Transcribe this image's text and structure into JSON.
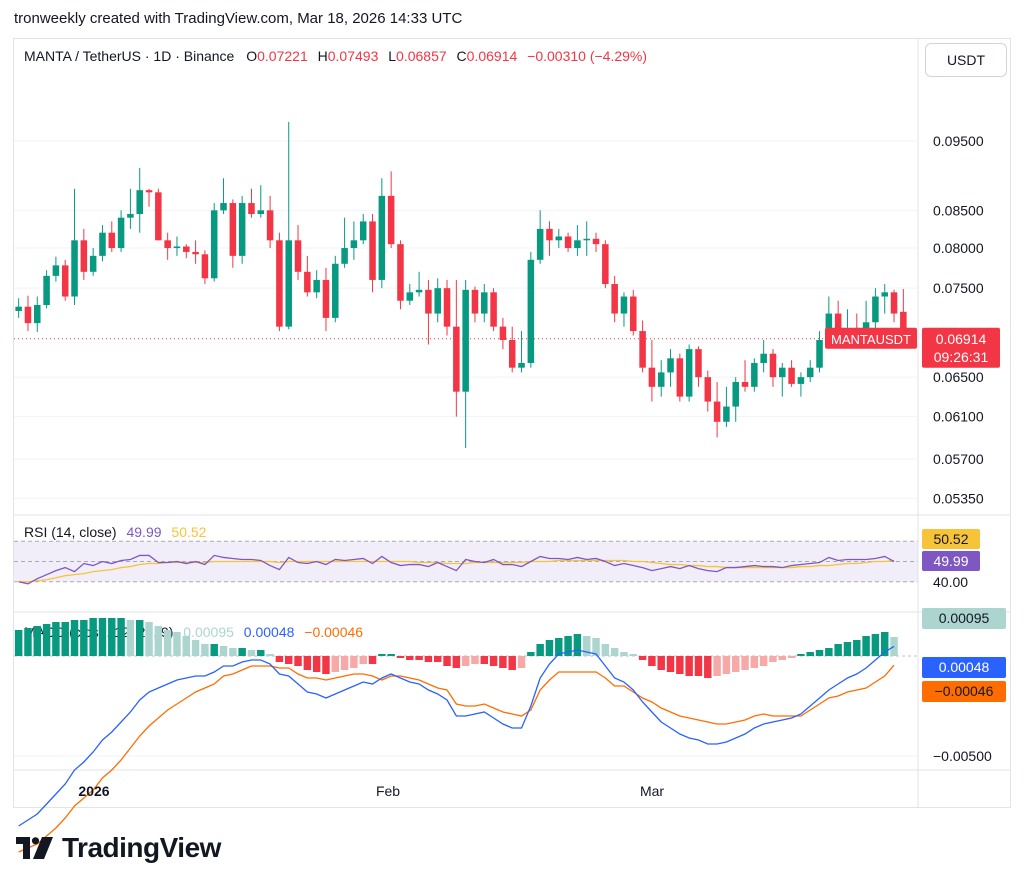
{
  "header": {
    "caption": "tronweekly created with TradingView.com, Mar 18, 2026 14:33 UTC"
  },
  "legend": {
    "symbol": "MANTA / TetherUS · 1D · Binance",
    "o_label": "O",
    "o_value": "0.07221",
    "h_label": "H",
    "h_value": "0.07493",
    "l_label": "L",
    "l_value": "0.06857",
    "c_label": "C",
    "c_value": "0.06914",
    "change": "−0.00310 (−4.29%)"
  },
  "unit_button": "USDT",
  "price_badge": {
    "symbol": "MANTAUSDT",
    "price": "0.06914",
    "countdown": "09:26:31"
  },
  "rsi_legend": {
    "label": "RSI (14, close)",
    "rsi": "49.99",
    "ma": "50.52"
  },
  "macd_legend": {
    "label": "MACD (close, 12, 26, 9)",
    "hist": "0.00095",
    "macd": "0.00048",
    "signal": "−0.00046"
  },
  "brand": "TradingView",
  "colors": {
    "up": "#089981",
    "down": "#f23645",
    "up_light": "#acd5cf",
    "down_light": "#f7a9a7",
    "rsi": "#7e57c2",
    "rsi_ma": "#f7c338",
    "macd": "#2962ff",
    "signal": "#ff6d00"
  },
  "chart_data": [
    {
      "type": "candlestick",
      "title": "MANTA / TetherUS · 1D · Binance",
      "y_ticks": [
        "0.09500",
        "0.08500",
        "0.08000",
        "0.07500",
        "0.06500",
        "0.06100",
        "0.05700",
        "0.05350"
      ],
      "x_ticks": [
        "2026",
        "Feb",
        "Mar"
      ],
      "scale": "log",
      "ylim": [
        0.0525,
        0.1015
      ],
      "last_price": 0.06914,
      "candles": [
        [
          0.0723,
          0.0738,
          0.0715,
          0.0728
        ],
        [
          0.0728,
          0.0741,
          0.07,
          0.0709
        ],
        [
          0.0709,
          0.074,
          0.0699,
          0.073
        ],
        [
          0.073,
          0.0772,
          0.0726,
          0.0765
        ],
        [
          0.0765,
          0.0789,
          0.0758,
          0.0778
        ],
        [
          0.0778,
          0.0785,
          0.0735,
          0.074
        ],
        [
          0.074,
          0.088,
          0.073,
          0.081
        ],
        [
          0.081,
          0.0825,
          0.076,
          0.077
        ],
        [
          0.077,
          0.08,
          0.0765,
          0.079
        ],
        [
          0.079,
          0.083,
          0.0783,
          0.082
        ],
        [
          0.082,
          0.0835,
          0.0795,
          0.08
        ],
        [
          0.08,
          0.085,
          0.0795,
          0.084
        ],
        [
          0.084,
          0.088,
          0.0825,
          0.0845
        ],
        [
          0.0845,
          0.091,
          0.082,
          0.0878
        ],
        [
          0.0878,
          0.088,
          0.0855,
          0.0875
        ],
        [
          0.0875,
          0.088,
          0.081,
          0.081
        ],
        [
          0.081,
          0.082,
          0.0785,
          0.08
        ],
        [
          0.08,
          0.0815,
          0.079,
          0.0802
        ],
        [
          0.0802,
          0.0805,
          0.0787,
          0.0795
        ],
        [
          0.0795,
          0.081,
          0.078,
          0.0792
        ],
        [
          0.0792,
          0.0797,
          0.0755,
          0.0762
        ],
        [
          0.0762,
          0.086,
          0.0758,
          0.085
        ],
        [
          0.085,
          0.0895,
          0.0845,
          0.086
        ],
        [
          0.086,
          0.0865,
          0.0775,
          0.079
        ],
        [
          0.079,
          0.087,
          0.078,
          0.086
        ],
        [
          0.086,
          0.088,
          0.084,
          0.0845
        ],
        [
          0.0845,
          0.0885,
          0.084,
          0.085
        ],
        [
          0.085,
          0.087,
          0.08,
          0.081
        ],
        [
          0.081,
          0.082,
          0.07,
          0.0705
        ],
        [
          0.0705,
          0.098,
          0.0702,
          0.081
        ],
        [
          0.081,
          0.083,
          0.076,
          0.077
        ],
        [
          0.077,
          0.079,
          0.074,
          0.0745
        ],
        [
          0.0745,
          0.0772,
          0.0738,
          0.076
        ],
        [
          0.076,
          0.0775,
          0.07,
          0.0715
        ],
        [
          0.0715,
          0.079,
          0.071,
          0.078
        ],
        [
          0.078,
          0.084,
          0.0775,
          0.08
        ],
        [
          0.08,
          0.0835,
          0.0785,
          0.081
        ],
        [
          0.081,
          0.0845,
          0.0805,
          0.0835
        ],
        [
          0.0835,
          0.0845,
          0.0745,
          0.076
        ],
        [
          0.076,
          0.0895,
          0.075,
          0.087
        ],
        [
          0.087,
          0.0905,
          0.08,
          0.0805
        ],
        [
          0.0805,
          0.081,
          0.0725,
          0.0735
        ],
        [
          0.0735,
          0.0755,
          0.073,
          0.0745
        ],
        [
          0.0745,
          0.077,
          0.074,
          0.0748
        ],
        [
          0.0748,
          0.076,
          0.0685,
          0.072
        ],
        [
          0.072,
          0.0762,
          0.071,
          0.075
        ],
        [
          0.075,
          0.076,
          0.0695,
          0.0705
        ],
        [
          0.0705,
          0.076,
          0.061,
          0.0635
        ],
        [
          0.0635,
          0.076,
          0.058,
          0.0748
        ],
        [
          0.0748,
          0.0752,
          0.071,
          0.072
        ],
        [
          0.072,
          0.0755,
          0.071,
          0.0745
        ],
        [
          0.0745,
          0.075,
          0.07,
          0.0705
        ],
        [
          0.0705,
          0.0715,
          0.068,
          0.069
        ],
        [
          0.069,
          0.0705,
          0.0655,
          0.066
        ],
        [
          0.066,
          0.07,
          0.0655,
          0.0665
        ],
        [
          0.0665,
          0.0795,
          0.066,
          0.0785
        ],
        [
          0.0785,
          0.085,
          0.078,
          0.0825
        ],
        [
          0.0825,
          0.0835,
          0.079,
          0.081
        ],
        [
          0.081,
          0.0825,
          0.08,
          0.0815
        ],
        [
          0.0815,
          0.082,
          0.0795,
          0.08
        ],
        [
          0.08,
          0.083,
          0.079,
          0.081
        ],
        [
          0.081,
          0.0835,
          0.079,
          0.0812
        ],
        [
          0.0812,
          0.082,
          0.0795,
          0.0805
        ],
        [
          0.0805,
          0.081,
          0.075,
          0.0755
        ],
        [
          0.0755,
          0.0765,
          0.071,
          0.072
        ],
        [
          0.072,
          0.0745,
          0.0705,
          0.074
        ],
        [
          0.074,
          0.0748,
          0.0695,
          0.07
        ],
        [
          0.07,
          0.0712,
          0.0655,
          0.066
        ],
        [
          0.066,
          0.069,
          0.0625,
          0.064
        ],
        [
          0.064,
          0.0668,
          0.063,
          0.0655
        ],
        [
          0.0655,
          0.068,
          0.064,
          0.067
        ],
        [
          0.067,
          0.0675,
          0.0625,
          0.063
        ],
        [
          0.063,
          0.0685,
          0.0625,
          0.068
        ],
        [
          0.068,
          0.0683,
          0.064,
          0.065
        ],
        [
          0.065,
          0.0657,
          0.0615,
          0.0625
        ],
        [
          0.0625,
          0.0645,
          0.059,
          0.0605
        ],
        [
          0.0605,
          0.064,
          0.06,
          0.062
        ],
        [
          0.062,
          0.065,
          0.0605,
          0.0645
        ],
        [
          0.0645,
          0.0668,
          0.0635,
          0.064
        ],
        [
          0.064,
          0.067,
          0.0635,
          0.0665
        ],
        [
          0.0665,
          0.069,
          0.0655,
          0.0675
        ],
        [
          0.0675,
          0.068,
          0.064,
          0.065
        ],
        [
          0.065,
          0.0665,
          0.063,
          0.066
        ],
        [
          0.066,
          0.0668,
          0.064,
          0.0643
        ],
        [
          0.0643,
          0.0655,
          0.063,
          0.065
        ],
        [
          0.065,
          0.0668,
          0.0645,
          0.066
        ],
        [
          0.066,
          0.07,
          0.0655,
          0.069
        ],
        [
          0.069,
          0.074,
          0.0682,
          0.072
        ],
        [
          0.072,
          0.0735,
          0.0685,
          0.0695
        ],
        [
          0.0695,
          0.0725,
          0.0688,
          0.07
        ],
        [
          0.07,
          0.072,
          0.0683,
          0.069
        ],
        [
          0.069,
          0.0735,
          0.0688,
          0.071
        ],
        [
          0.071,
          0.075,
          0.0702,
          0.074
        ],
        [
          0.074,
          0.0755,
          0.072,
          0.0745
        ],
        [
          0.0745,
          0.0748,
          0.071,
          0.072
        ],
        [
          0.0722,
          0.0749,
          0.0686,
          0.0691
        ]
      ]
    },
    {
      "type": "line",
      "title": "RSI (14, close)",
      "y_ticks": [
        "40.00"
      ],
      "last": {
        "rsi": 49.99,
        "ma": 50.52
      },
      "series": [
        {
          "name": "RSI",
          "values": [
            30,
            28,
            33,
            37,
            41,
            44,
            40,
            48,
            46,
            50,
            48,
            51,
            52,
            56,
            56,
            49,
            49,
            50,
            48,
            50,
            47,
            56,
            54,
            53,
            52,
            52,
            51,
            46,
            42,
            54,
            49,
            48,
            50,
            47,
            52,
            51,
            52,
            53,
            48,
            55,
            49,
            46,
            47,
            47,
            45,
            49,
            45,
            41,
            52,
            50,
            49,
            52,
            47,
            47,
            45,
            50,
            55,
            53,
            53,
            52,
            54,
            52,
            53,
            50,
            46,
            48,
            46,
            44,
            41,
            43,
            45,
            43,
            46,
            43,
            41,
            40,
            44,
            44,
            45,
            46,
            45,
            45,
            44,
            46,
            47,
            48,
            49,
            54,
            51,
            52,
            52,
            52,
            53,
            55,
            50
          ]
        },
        {
          "name": "MA",
          "values": [
            30,
            30,
            31,
            32,
            34,
            36,
            37,
            38,
            40,
            41,
            42,
            44,
            45,
            47,
            48,
            48,
            49,
            49,
            49,
            49,
            49,
            50,
            50,
            50,
            50,
            50,
            50,
            50,
            49,
            50,
            50,
            50,
            50,
            50,
            50,
            50,
            50,
            50,
            50,
            50,
            50,
            50,
            50,
            49,
            49,
            49,
            48,
            48,
            48,
            49,
            49,
            49,
            49,
            49,
            49,
            50,
            50,
            50,
            51,
            51,
            51,
            51,
            51,
            51,
            51,
            51,
            50,
            50,
            49,
            48,
            47,
            47,
            46,
            46,
            45,
            45,
            44,
            44,
            44,
            44,
            44,
            44,
            44,
            44,
            45,
            45,
            46,
            46,
            47,
            48,
            48,
            49,
            50,
            50,
            51
          ]
        }
      ]
    },
    {
      "type": "bar+line",
      "title": "MACD (close, 12, 26, 9)",
      "y_ticks": [
        "−0.00500"
      ],
      "last": {
        "histogram": 0.00095,
        "macd": 0.00048,
        "signal": -0.00046
      },
      "series": [
        {
          "name": "Histogram",
          "values": [
            0.0013,
            0.0014,
            0.0015,
            0.0016,
            0.0017,
            0.0017,
            0.0018,
            0.0018,
            0.0019,
            0.0019,
            0.0019,
            0.0019,
            0.0018,
            0.0018,
            0.0017,
            0.0015,
            0.0013,
            0.0012,
            0.001,
            0.0008,
            0.0006,
            0.0006,
            0.0005,
            0.0004,
            0.0004,
            0.0003,
            0.0003,
            0.0001,
            -0.0003,
            -0.0004,
            -0.0005,
            -0.0007,
            -0.0008,
            -0.0009,
            -0.0008,
            -0.0007,
            -0.0006,
            -0.0004,
            -0.0004,
            0.0001,
            0.0001,
            -0.0001,
            -0.0002,
            -0.0002,
            -0.0003,
            -0.0003,
            -0.0005,
            -0.0006,
            -0.0005,
            -0.0004,
            -0.0004,
            -0.0005,
            -0.0006,
            -0.0007,
            -0.0006,
            0.0002,
            0.0006,
            0.0008,
            0.0009,
            0.001,
            0.0011,
            0.001,
            0.0009,
            0.0006,
            0.0004,
            0.0002,
            0.0001,
            -0.0002,
            -0.0005,
            -0.0007,
            -0.0008,
            -0.0009,
            -0.001,
            -0.001,
            -0.0011,
            -0.001,
            -0.0009,
            -0.0008,
            -0.0007,
            -0.0006,
            -0.0005,
            -0.0003,
            -0.0002,
            -0.0001,
            0.0001,
            0.0002,
            0.0003,
            0.0004,
            0.0006,
            0.0007,
            0.0008,
            0.001,
            0.0011,
            0.0012,
            0.00095
          ]
        },
        {
          "name": "MACD",
          "values": [
            -0.0085,
            -0.0082,
            -0.0079,
            -0.0074,
            -0.0069,
            -0.0064,
            -0.0057,
            -0.0053,
            -0.0048,
            -0.0042,
            -0.0038,
            -0.0033,
            -0.0028,
            -0.0022,
            -0.0018,
            -0.0016,
            -0.0014,
            -0.0012,
            -0.0011,
            -0.001,
            -0.001,
            -0.0008,
            -0.0005,
            -0.0005,
            -0.0003,
            -0.0002,
            -0.0002,
            -0.0004,
            -0.0009,
            -0.001,
            -0.0014,
            -0.0018,
            -0.0019,
            -0.0021,
            -0.0019,
            -0.0017,
            -0.0015,
            -0.0013,
            -0.0014,
            -0.0011,
            -0.0009,
            -0.0011,
            -0.0013,
            -0.0014,
            -0.0017,
            -0.0019,
            -0.0022,
            -0.003,
            -0.003,
            -0.0029,
            -0.0028,
            -0.0031,
            -0.0034,
            -0.0036,
            -0.0036,
            -0.0025,
            -0.0011,
            -0.0004,
            0.0001,
            0.0002,
            0.0003,
            0.0002,
            0.0001,
            -0.0005,
            -0.0011,
            -0.0013,
            -0.0017,
            -0.0023,
            -0.0028,
            -0.0033,
            -0.0036,
            -0.0039,
            -0.0041,
            -0.0042,
            -0.0044,
            -0.0044,
            -0.0043,
            -0.0041,
            -0.0039,
            -0.0036,
            -0.0034,
            -0.0033,
            -0.0032,
            -0.0031,
            -0.0029,
            -0.0025,
            -0.0021,
            -0.0017,
            -0.0014,
            -0.0011,
            -0.0009,
            -0.0006,
            -0.0002,
            0.0002,
            0.00048
          ]
        },
        {
          "name": "Signal",
          "values": [
            -0.0098,
            -0.0096,
            -0.0094,
            -0.009,
            -0.0086,
            -0.0081,
            -0.0075,
            -0.0071,
            -0.0067,
            -0.0061,
            -0.0057,
            -0.0052,
            -0.0046,
            -0.004,
            -0.0035,
            -0.0031,
            -0.0027,
            -0.0024,
            -0.0021,
            -0.0018,
            -0.0016,
            -0.0014,
            -0.001,
            -0.0009,
            -0.0007,
            -0.0005,
            -0.0005,
            -0.0005,
            -0.0006,
            -0.0006,
            -0.0009,
            -0.0011,
            -0.0011,
            -0.0012,
            -0.0011,
            -0.001,
            -0.0009,
            -0.0009,
            -0.001,
            -0.0012,
            -0.001,
            -0.001,
            -0.0011,
            -0.0012,
            -0.0014,
            -0.0016,
            -0.0017,
            -0.0024,
            -0.0025,
            -0.0025,
            -0.0024,
            -0.0026,
            -0.0028,
            -0.0029,
            -0.003,
            -0.0027,
            -0.0017,
            -0.0012,
            -0.0008,
            -0.0008,
            -0.0008,
            -0.0008,
            -0.0008,
            -0.0011,
            -0.0015,
            -0.0015,
            -0.0018,
            -0.0021,
            -0.0023,
            -0.0026,
            -0.0028,
            -0.003,
            -0.0031,
            -0.0032,
            -0.0033,
            -0.0034,
            -0.0034,
            -0.0033,
            -0.0032,
            -0.003,
            -0.0029,
            -0.003,
            -0.003,
            -0.003,
            -0.003,
            -0.0027,
            -0.0024,
            -0.0021,
            -0.002,
            -0.0018,
            -0.0017,
            -0.0016,
            -0.0013,
            -0.001,
            -0.00046
          ]
        }
      ]
    }
  ]
}
